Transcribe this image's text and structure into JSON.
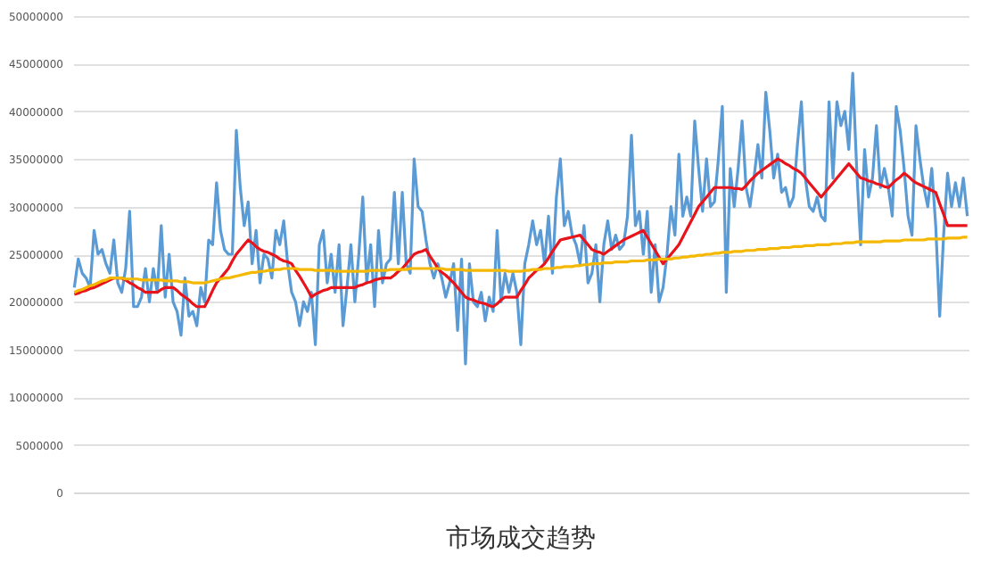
{
  "chart_data": {
    "type": "line",
    "title": "市场成交趋势",
    "categories": [
      null,
      null,
      null,
      null,
      null,
      null,
      null,
      null,
      null,
      null,
      null,
      null,
      null,
      null,
      null,
      null,
      null,
      null,
      null,
      null,
      null,
      null,
      null,
      null,
      null,
      null,
      null,
      null,
      null,
      null,
      null,
      null,
      null,
      null,
      null,
      null,
      null,
      null,
      null,
      null,
      null,
      null,
      null,
      null,
      null,
      null,
      null,
      null,
      null,
      null,
      null,
      null,
      null,
      null,
      null,
      null,
      null,
      null,
      null,
      null,
      null,
      null,
      null,
      null,
      null,
      null,
      null,
      null,
      null,
      null,
      null,
      null,
      null,
      null,
      null,
      null,
      null,
      null,
      null,
      null,
      null,
      null,
      null,
      null,
      null,
      null,
      null,
      null,
      null,
      null,
      null,
      null,
      null,
      null,
      null,
      null,
      null,
      null,
      null,
      null,
      null,
      null,
      null,
      null,
      null,
      null,
      null,
      null,
      null,
      null,
      null,
      null,
      null,
      null,
      null,
      null,
      null,
      null,
      null,
      null,
      null,
      null,
      null,
      null,
      null,
      null,
      null,
      null,
      null,
      null,
      null,
      null,
      null,
      null,
      null,
      null,
      null,
      null,
      null,
      null,
      null,
      null,
      null,
      null,
      null,
      null,
      null,
      null,
      null,
      null,
      null,
      null,
      null,
      null,
      null,
      null,
      null,
      null,
      null,
      null,
      null,
      null,
      null,
      null,
      null,
      null,
      null,
      null,
      null,
      null,
      null,
      null,
      null,
      null,
      null,
      null,
      null,
      null,
      null,
      null,
      null,
      null,
      null,
      null,
      null,
      null,
      null,
      null,
      null,
      null,
      null,
      null,
      null,
      null,
      null,
      null,
      null,
      null,
      null,
      null,
      null,
      null,
      null,
      null,
      null,
      null,
      null,
      null,
      null,
      null,
      null,
      null,
      null,
      null,
      null,
      null,
      null,
      null,
      null,
      null,
      null,
      null,
      null,
      null,
      null,
      null,
      null
    ],
    "series": [
      {
        "color": "#5b9bd5",
        "values": [
          21500000,
          24500000,
          23000000,
          22500000,
          21500000,
          27500000,
          25000000,
          25500000,
          24000000,
          23000000,
          26500000,
          22000000,
          21000000,
          23500000,
          29500000,
          19500000,
          19500000,
          20500000,
          23500000,
          20000000,
          23500000,
          21000000,
          28000000,
          20500000,
          25000000,
          20000000,
          19000000,
          16500000,
          22500000,
          18500000,
          19000000,
          17500000,
          21500000,
          20000000,
          26500000,
          26000000,
          32500000,
          27500000,
          25500000,
          25000000,
          25000000,
          38000000,
          32000000,
          28000000,
          30500000,
          24000000,
          27500000,
          22000000,
          25000000,
          24500000,
          22500000,
          27500000,
          26000000,
          28500000,
          24000000,
          21000000,
          20000000,
          17500000,
          20000000,
          19000000,
          21000000,
          15500000,
          26000000,
          27500000,
          22000000,
          25000000,
          21000000,
          26000000,
          17500000,
          21500000,
          26000000,
          20000000,
          25000000,
          31000000,
          22000000,
          26000000,
          19500000,
          27500000,
          22000000,
          24000000,
          24500000,
          31500000,
          24000000,
          31500000,
          24000000,
          23000000,
          35000000,
          30000000,
          29500000,
          26500000,
          24000000,
          22500000,
          24000000,
          22500000,
          20500000,
          22000000,
          24000000,
          17000000,
          24500000,
          13500000,
          24000000,
          20000000,
          19500000,
          21000000,
          18000000,
          20500000,
          19000000,
          27500000,
          20000000,
          23000000,
          21000000,
          23000000,
          21000000,
          15500000,
          24000000,
          26000000,
          28500000,
          26000000,
          27500000,
          24000000,
          29000000,
          23000000,
          31000000,
          35000000,
          28000000,
          29500000,
          27000000,
          26000000,
          24000000,
          28000000,
          22000000,
          23000000,
          26000000,
          20000000,
          26000000,
          28500000,
          25500000,
          27000000,
          25500000,
          26000000,
          29000000,
          37500000,
          28000000,
          29500000,
          25000000,
          29500000,
          21000000,
          26000000,
          20000000,
          21500000,
          25000000,
          30000000,
          27000000,
          35500000,
          29000000,
          31000000,
          29000000,
          39000000,
          34000000,
          29500000,
          35000000,
          30000000,
          30500000,
          35000000,
          40500000,
          21000000,
          34000000,
          30000000,
          34000000,
          39000000,
          32000000,
          30000000,
          33000000,
          36500000,
          33000000,
          42000000,
          38000000,
          33000000,
          35500000,
          31500000,
          32000000,
          30000000,
          31000000,
          36500000,
          41000000,
          33000000,
          30000000,
          29500000,
          31000000,
          29000000,
          28500000,
          41000000,
          33000000,
          41000000,
          38500000,
          40000000,
          36000000,
          44000000,
          34000000,
          26000000,
          36000000,
          31000000,
          33000000,
          38500000,
          32000000,
          34000000,
          32000000,
          29000000,
          40500000,
          38000000,
          34000000,
          29000000,
          27000000,
          38500000,
          35000000,
          32000000,
          30000000,
          34000000,
          28000000,
          18500000,
          27000000,
          33500000,
          30000000,
          32500000,
          30000000,
          33000000,
          29000000
        ]
      },
      {
        "color": "#e8141b",
        "values": [
          20800000,
          20900000,
          21100000,
          21200000,
          21400000,
          21500000,
          21700000,
          21900000,
          22100000,
          22300000,
          22500000,
          22500000,
          22500000,
          22300000,
          22000000,
          21800000,
          21500000,
          21300000,
          21000000,
          21000000,
          21000000,
          21000000,
          21300000,
          21500000,
          21500000,
          21500000,
          21200000,
          20800000,
          20500000,
          20200000,
          19800000,
          19500000,
          19500000,
          19500000,
          20300000,
          21200000,
          22000000,
          22500000,
          23000000,
          23500000,
          24300000,
          25000000,
          25500000,
          26000000,
          26500000,
          26200000,
          25800000,
          25500000,
          25300000,
          25200000,
          25000000,
          24800000,
          24500000,
          24300000,
          24200000,
          24000000,
          23300000,
          22700000,
          22000000,
          21300000,
          20500000,
          20800000,
          21000000,
          21200000,
          21300000,
          21500000,
          21500000,
          21500000,
          21500000,
          21500000,
          21500000,
          21500000,
          21700000,
          21800000,
          22000000,
          22100000,
          22300000,
          22400000,
          22500000,
          22500000,
          22500000,
          22800000,
          23200000,
          23500000,
          24000000,
          24500000,
          25000000,
          25200000,
          25300000,
          25500000,
          24800000,
          24200000,
          23500000,
          23100000,
          22800000,
          22400000,
          22000000,
          21500000,
          21000000,
          20500000,
          20300000,
          20200000,
          20000000,
          19900000,
          19800000,
          19600000,
          19500000,
          19800000,
          20200000,
          20500000,
          20500000,
          20500000,
          20500000,
          21200000,
          21800000,
          22500000,
          22900000,
          23300000,
          23600000,
          24000000,
          24600000,
          25300000,
          25900000,
          26500000,
          26600000,
          26700000,
          26800000,
          26900000,
          27000000,
          26500000,
          26000000,
          25500000,
          25300000,
          25200000,
          25000000,
          25300000,
          25600000,
          25900000,
          26200000,
          26500000,
          26700000,
          26900000,
          27100000,
          27300000,
          27500000,
          26800000,
          26100000,
          25400000,
          24700000,
          24000000,
          24500000,
          25000000,
          25500000,
          26000000,
          26800000,
          27600000,
          28400000,
          29200000,
          30000000,
          30500000,
          31000000,
          31500000,
          32000000,
          32000000,
          32000000,
          32000000,
          32000000,
          31900000,
          31900000,
          31800000,
          32200000,
          32700000,
          33100000,
          33500000,
          33800000,
          34100000,
          34400000,
          34700000,
          35000000,
          34800000,
          34500000,
          34300000,
          34000000,
          33800000,
          33500000,
          33000000,
          32500000,
          32000000,
          31500000,
          31000000,
          31500000,
          32000000,
          32500000,
          33000000,
          33500000,
          34000000,
          34500000,
          34000000,
          33500000,
          33000000,
          32900000,
          32700000,
          32600000,
          32400000,
          32300000,
          32100000,
          32000000,
          32400000,
          32800000,
          33100000,
          33500000,
          33200000,
          32800000,
          32500000,
          32300000,
          32100000,
          31900000,
          31700000,
          31500000,
          30300000,
          29200000,
          28000000,
          28000000,
          28000000,
          28000000,
          28000000,
          28000000
        ]
      },
      {
        "color": "#f5b800",
        "values": [
          21000000,
          21200000,
          21300000,
          21500000,
          21700000,
          21800000,
          22000000,
          22200000,
          22300000,
          22500000,
          22500000,
          22500000,
          22500000,
          22400000,
          22400000,
          22400000,
          22400000,
          22300000,
          22300000,
          22300000,
          22300000,
          22300000,
          22300000,
          22200000,
          22200000,
          22200000,
          22200000,
          22100000,
          22100000,
          22100000,
          22000000,
          22000000,
          22000000,
          22000000,
          22100000,
          22200000,
          22300000,
          22400000,
          22500000,
          22500000,
          22600000,
          22700000,
          22800000,
          22900000,
          23000000,
          23100000,
          23100000,
          23200000,
          23200000,
          23300000,
          23300000,
          23400000,
          23400000,
          23500000,
          23500000,
          23500000,
          23500000,
          23400000,
          23400000,
          23400000,
          23400000,
          23300000,
          23300000,
          23300000,
          23300000,
          23300000,
          23200000,
          23200000,
          23200000,
          23200000,
          23200000,
          23200000,
          23200000,
          23200000,
          23200000,
          23300000,
          23300000,
          23300000,
          23300000,
          23300000,
          23400000,
          23400000,
          23400000,
          23400000,
          23400000,
          23500000,
          23500000,
          23500000,
          23500000,
          23500000,
          23500000,
          23500000,
          23500000,
          23500000,
          23400000,
          23400000,
          23400000,
          23400000,
          23400000,
          23300000,
          23300000,
          23300000,
          23300000,
          23300000,
          23300000,
          23300000,
          23300000,
          23300000,
          23300000,
          23300000,
          23200000,
          23200000,
          23200000,
          23200000,
          23300000,
          23300000,
          23400000,
          23400000,
          23400000,
          23500000,
          23500000,
          23500000,
          23600000,
          23600000,
          23700000,
          23700000,
          23700000,
          23800000,
          23800000,
          23900000,
          23900000,
          24000000,
          24000000,
          24000000,
          24100000,
          24100000,
          24100000,
          24200000,
          24200000,
          24200000,
          24200000,
          24300000,
          24300000,
          24300000,
          24300000,
          24400000,
          24400000,
          24400000,
          24500000,
          24500000,
          24500000,
          24500000,
          24600000,
          24600000,
          24700000,
          24700000,
          24800000,
          24800000,
          24900000,
          24900000,
          25000000,
          25000000,
          25100000,
          25100000,
          25200000,
          25200000,
          25200000,
          25300000,
          25300000,
          25300000,
          25400000,
          25400000,
          25400000,
          25500000,
          25500000,
          25500000,
          25600000,
          25600000,
          25600000,
          25700000,
          25700000,
          25700000,
          25800000,
          25800000,
          25800000,
          25900000,
          25900000,
          25900000,
          26000000,
          26000000,
          26000000,
          26000000,
          26100000,
          26100000,
          26100000,
          26200000,
          26200000,
          26200000,
          26300000,
          26300000,
          26300000,
          26300000,
          26300000,
          26300000,
          26300000,
          26400000,
          26400000,
          26400000,
          26400000,
          26400000,
          26500000,
          26500000,
          26500000,
          26500000,
          26500000,
          26500000,
          26600000,
          26600000,
          26600000,
          26600000,
          26600000,
          26700000,
          26700000,
          26700000,
          26700000,
          26800000,
          26800000
        ]
      }
    ],
    "ylim": [
      0,
      50000000
    ],
    "yticks": [
      0,
      5000000,
      10000000,
      15000000,
      20000000,
      25000000,
      30000000,
      35000000,
      40000000,
      45000000,
      50000000
    ],
    "grid": "y",
    "legend": false,
    "tick_labels": "y",
    "marker": "none",
    "line_style": "solid"
  }
}
